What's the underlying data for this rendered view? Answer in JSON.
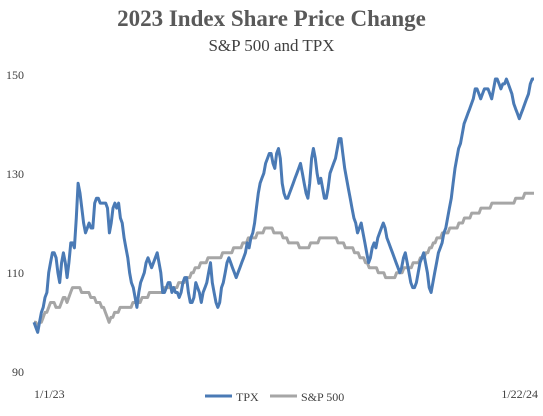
{
  "chart_data": {
    "type": "line",
    "title": "2023 Index Share Price Change",
    "subtitle": "S&P 500 and TPX",
    "xlabel": "",
    "ylabel": "",
    "ylim": [
      90,
      150
    ],
    "yticks": [
      "90",
      "110",
      "130",
      "150"
    ],
    "x_start_label": "1/1/23",
    "x_end_label": "1/22/24",
    "grid": false,
    "legend_position": "bottom",
    "colors": {
      "TPX": "#4a7ab5",
      "S&P 500": "#a6a6a6"
    },
    "series": [
      {
        "name": "TPX",
        "values": [
          100,
          99,
          98,
          100,
          102,
          103,
          105,
          106,
          110,
          112,
          114,
          114,
          113,
          110,
          108,
          112,
          114,
          112,
          109,
          112,
          116,
          116,
          115,
          121,
          128,
          126,
          123,
          120,
          118,
          119,
          120,
          119,
          119,
          124,
          125,
          125,
          124,
          124,
          124,
          124,
          123,
          118,
          120,
          123,
          124,
          123,
          124,
          121,
          120,
          117,
          115,
          113,
          110,
          108,
          107,
          105,
          103,
          106,
          108,
          109,
          110,
          112,
          113,
          112,
          111,
          112,
          113,
          114,
          112,
          110,
          106,
          106,
          107,
          108,
          108,
          106,
          107,
          106,
          106,
          105,
          106,
          108,
          109,
          109,
          106,
          104,
          104,
          105,
          108,
          107,
          106,
          104,
          106,
          107,
          108,
          110,
          112,
          108,
          106,
          104,
          103,
          104,
          107,
          108,
          110,
          112,
          113,
          112,
          111,
          110,
          109,
          110,
          111,
          112,
          113,
          114,
          116,
          115,
          117,
          118,
          120,
          123,
          126,
          128,
          129,
          130,
          132,
          133,
          134,
          134,
          132,
          131,
          134,
          135,
          133,
          128,
          126,
          125,
          125,
          126,
          127,
          128,
          129,
          130,
          131,
          132,
          130,
          128,
          126,
          125,
          128,
          133,
          135,
          133,
          130,
          128,
          129,
          127,
          125,
          125,
          127,
          130,
          131,
          132,
          133,
          135,
          137,
          137,
          134,
          131,
          129,
          127,
          125,
          123,
          121,
          120,
          118,
          119,
          120,
          118,
          116,
          114,
          112,
          113,
          115,
          116,
          115,
          117,
          118,
          119,
          120,
          119,
          117,
          116,
          115,
          114,
          113,
          112,
          111,
          110,
          111,
          113,
          114,
          112,
          110,
          108,
          107,
          107,
          108,
          110,
          112,
          113,
          114,
          112,
          110,
          107,
          106,
          108,
          110,
          112,
          114,
          115,
          116,
          118,
          119,
          121,
          123,
          125,
          128,
          131,
          133,
          135,
          136,
          138,
          140,
          141,
          142,
          143,
          144,
          145,
          147,
          147,
          146,
          145,
          146,
          147,
          147,
          147,
          146,
          145,
          147,
          149,
          149,
          148,
          147,
          148,
          148,
          149,
          148,
          147,
          146,
          144,
          143,
          142,
          141,
          142,
          143,
          144,
          145,
          146,
          148,
          149,
          149
        ]
      },
      {
        "name": "S&P 500",
        "values": [
          100,
          100,
          99,
          100,
          100,
          101,
          102,
          102,
          103,
          104,
          104,
          104,
          103,
          103,
          103,
          104,
          105,
          105,
          104,
          105,
          106,
          107,
          107,
          107,
          107,
          107,
          106,
          106,
          106,
          106,
          106,
          105,
          105,
          105,
          104,
          104,
          104,
          103,
          103,
          102,
          101,
          100,
          101,
          101,
          102,
          102,
          102,
          103,
          103,
          103,
          103,
          103,
          103,
          103,
          104,
          104,
          104,
          104,
          104,
          105,
          105,
          105,
          105,
          106,
          106,
          106,
          106,
          106,
          106,
          106,
          106,
          107,
          107,
          107,
          107,
          107,
          107,
          107,
          107,
          108,
          108,
          108,
          108,
          109,
          109,
          109,
          110,
          110,
          111,
          111,
          111,
          112,
          112,
          112,
          112,
          113,
          113,
          113,
          113,
          113,
          113,
          113,
          113,
          114,
          114,
          114,
          114,
          114,
          114,
          115,
          115,
          115,
          115,
          115,
          116,
          116,
          116,
          117,
          117,
          117,
          117,
          117,
          118,
          118,
          118,
          118,
          119,
          119,
          119,
          119,
          119,
          118,
          118,
          118,
          118,
          118,
          117,
          117,
          117,
          116,
          116,
          116,
          116,
          116,
          116,
          115,
          115,
          115,
          115,
          115,
          115,
          116,
          116,
          116,
          116,
          116,
          117,
          117,
          117,
          117,
          117,
          117,
          117,
          117,
          117,
          117,
          116,
          116,
          116,
          116,
          115,
          115,
          115,
          115,
          115,
          114,
          114,
          114,
          113,
          113,
          113,
          112,
          112,
          111,
          111,
          111,
          111,
          111,
          110,
          110,
          110,
          110,
          109,
          109,
          109,
          109,
          109,
          109,
          110,
          110,
          110,
          110,
          111,
          111,
          111,
          111,
          111,
          112,
          112,
          112,
          112,
          113,
          113,
          113,
          114,
          114,
          115,
          115,
          116,
          116,
          117,
          117,
          117,
          118,
          118,
          118,
          118,
          119,
          119,
          119,
          119,
          119,
          120,
          120,
          120,
          121,
          121,
          121,
          121,
          122,
          122,
          122,
          122,
          122,
          123,
          123,
          123,
          123,
          123,
          123,
          124,
          124,
          124,
          124,
          124,
          124,
          124,
          124,
          124,
          124,
          124,
          124,
          124,
          125,
          125,
          125,
          125,
          125,
          126,
          126,
          126,
          126,
          126,
          126
        ]
      }
    ]
  }
}
